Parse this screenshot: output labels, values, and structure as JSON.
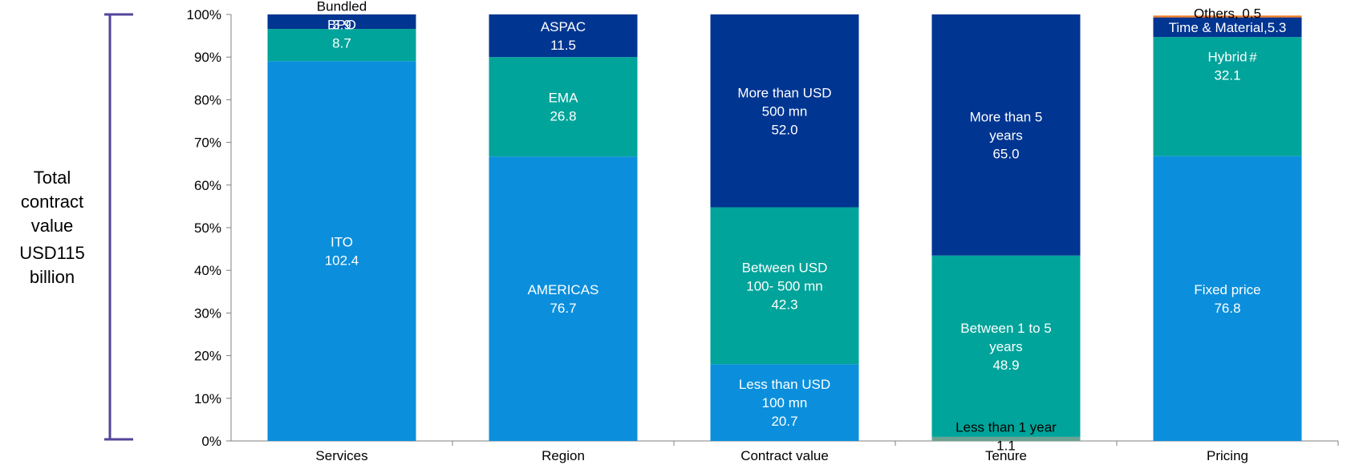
{
  "side_note": {
    "line1": "Total",
    "line2": "contract",
    "line3": "value",
    "line4": "USD115",
    "line5": "billion"
  },
  "colors": {
    "light_blue": "#0b8fdc",
    "teal": "#00a49a",
    "navy": "#003591",
    "grey_green": "#6aa394",
    "orange": "#f27a24",
    "bracket": "#55449a"
  },
  "chart_data": {
    "type": "bar",
    "stacked": true,
    "title": "",
    "xlabel": "",
    "ylabel": "",
    "ylim": [
      0,
      100
    ],
    "yticks": [
      "0%",
      "10%",
      "20%",
      "30%",
      "40%",
      "50%",
      "60%",
      "70%",
      "80%",
      "90%",
      "100%"
    ],
    "categories": [
      "Services",
      "Region",
      "Contract value",
      "Tenure",
      "Pricing"
    ],
    "bars": [
      {
        "category": "Services",
        "segments": [
          {
            "label": [
              "ITO",
              "102.4"
            ],
            "value": 102.4,
            "color": "#0b8fdc",
            "text_color": "#ffffff",
            "label_pos": "center"
          },
          {
            "label": [
              "BPO",
              "8.7"
            ],
            "value": 8.7,
            "color": "#00a49a",
            "text_color": "#ffffff",
            "label_pos": "straddle"
          },
          {
            "label": [
              "Bundled",
              "3.9"
            ],
            "value": 3.9,
            "color": "#003591",
            "text_color": "#ffffff",
            "label_pos": "straddle-top",
            "first_color": "#000000"
          }
        ]
      },
      {
        "category": "Region",
        "segments": [
          {
            "label": [
              "AMERICAS",
              "76.7"
            ],
            "value": 76.7,
            "color": "#0b8fdc",
            "text_color": "#ffffff",
            "label_pos": "center"
          },
          {
            "label": [
              "EMA",
              "26.8"
            ],
            "value": 26.8,
            "color": "#00a49a",
            "text_color": "#ffffff",
            "label_pos": "center"
          },
          {
            "label": [
              "ASPAC",
              "11.5"
            ],
            "value": 11.5,
            "color": "#003591",
            "text_color": "#ffffff",
            "label_pos": "center"
          }
        ]
      },
      {
        "category": "Contract value",
        "segments": [
          {
            "label": [
              "Less than USD",
              "100 mn",
              "20.7"
            ],
            "value": 20.7,
            "color": "#0b8fdc",
            "text_color": "#ffffff",
            "label_pos": "center"
          },
          {
            "label": [
              "Between  USD",
              "100- 500 mn",
              "42.3"
            ],
            "value": 42.3,
            "color": "#00a49a",
            "text_color": "#ffffff",
            "label_pos": "center"
          },
          {
            "label": [
              "More than USD",
              "500 mn",
              "52.0"
            ],
            "value": 52.0,
            "color": "#003591",
            "text_color": "#ffffff",
            "label_pos": "center"
          }
        ]
      },
      {
        "category": "Tenure",
        "segments": [
          {
            "label": [
              "Less than 1 year",
              "1.1"
            ],
            "value": 1.1,
            "color": "#6aa394",
            "text_color": "#000000",
            "label_pos": "straddle-bottom"
          },
          {
            "label": [
              "Between 1 to 5",
              "years",
              "48.9"
            ],
            "value": 48.9,
            "color": "#00a49a",
            "text_color": "#ffffff",
            "label_pos": "center"
          },
          {
            "label": [
              "More than 5",
              "years",
              "65.0"
            ],
            "value": 65.0,
            "color": "#003591",
            "text_color": "#ffffff",
            "label_pos": "center"
          }
        ]
      },
      {
        "category": "Pricing",
        "segments": [
          {
            "label": [
              "Fixed price",
              "76.8"
            ],
            "value": 76.8,
            "color": "#0b8fdc",
            "text_color": "#ffffff",
            "label_pos": "center"
          },
          {
            "label": [
              "Hybrid",
              "32.1"
            ],
            "value": 32.1,
            "color": "#00a49a",
            "text_color": "#ffffff",
            "label_pos": "upper",
            "superscript": "#"
          },
          {
            "label": [
              "Time & Material,5.3"
            ],
            "value": 5.3,
            "color": "#003591",
            "text_color": "#ffffff",
            "label_pos": "center-single"
          },
          {
            "label": [
              "Others, 0.5"
            ],
            "value": 0.5,
            "color": "#f27a24",
            "text_color": "#000000",
            "label_pos": "above"
          }
        ]
      }
    ]
  }
}
